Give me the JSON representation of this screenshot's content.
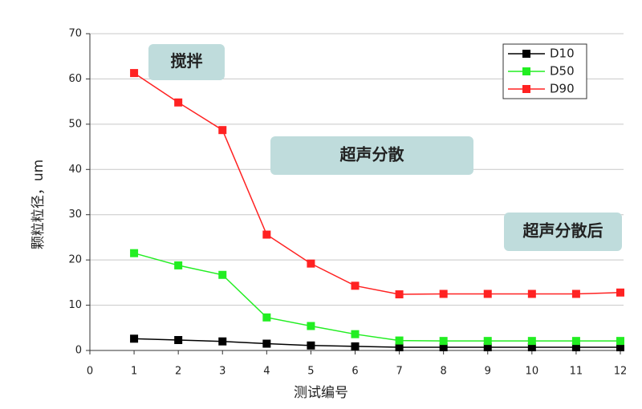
{
  "chart_data": {
    "type": "line",
    "xlabel": "测试编号",
    "ylabel": "颗粒粒径，um",
    "x": [
      1,
      2,
      3,
      4,
      5,
      6,
      7,
      8,
      9,
      10,
      11,
      12
    ],
    "series": [
      {
        "name": "D10",
        "color": "#000000",
        "values": [
          2.6,
          2.3,
          2.0,
          1.5,
          1.1,
          0.9,
          0.7,
          0.7,
          0.7,
          0.7,
          0.7,
          0.7
        ]
      },
      {
        "name": "D50",
        "color": "#22ee22",
        "values": [
          21.5,
          18.8,
          16.7,
          7.3,
          5.4,
          3.6,
          2.2,
          2.1,
          2.1,
          2.1,
          2.1,
          2.1
        ]
      },
      {
        "name": "D90",
        "color": "#ff2222",
        "values": [
          61.3,
          54.8,
          48.7,
          25.6,
          19.2,
          14.3,
          12.4,
          12.5,
          12.5,
          12.5,
          12.5,
          12.8
        ]
      }
    ],
    "xlim": [
      0,
      12
    ],
    "xticks": [
      0,
      1,
      2,
      3,
      4,
      5,
      6,
      7,
      8,
      9,
      10,
      11,
      12
    ],
    "ylim": [
      0,
      70
    ],
    "yticks": [
      0,
      10,
      20,
      30,
      40,
      50,
      60,
      70
    ],
    "grid": true,
    "legend": "top-right",
    "annotations": [
      "搅拌",
      "超声分散",
      "超声分散后"
    ]
  }
}
